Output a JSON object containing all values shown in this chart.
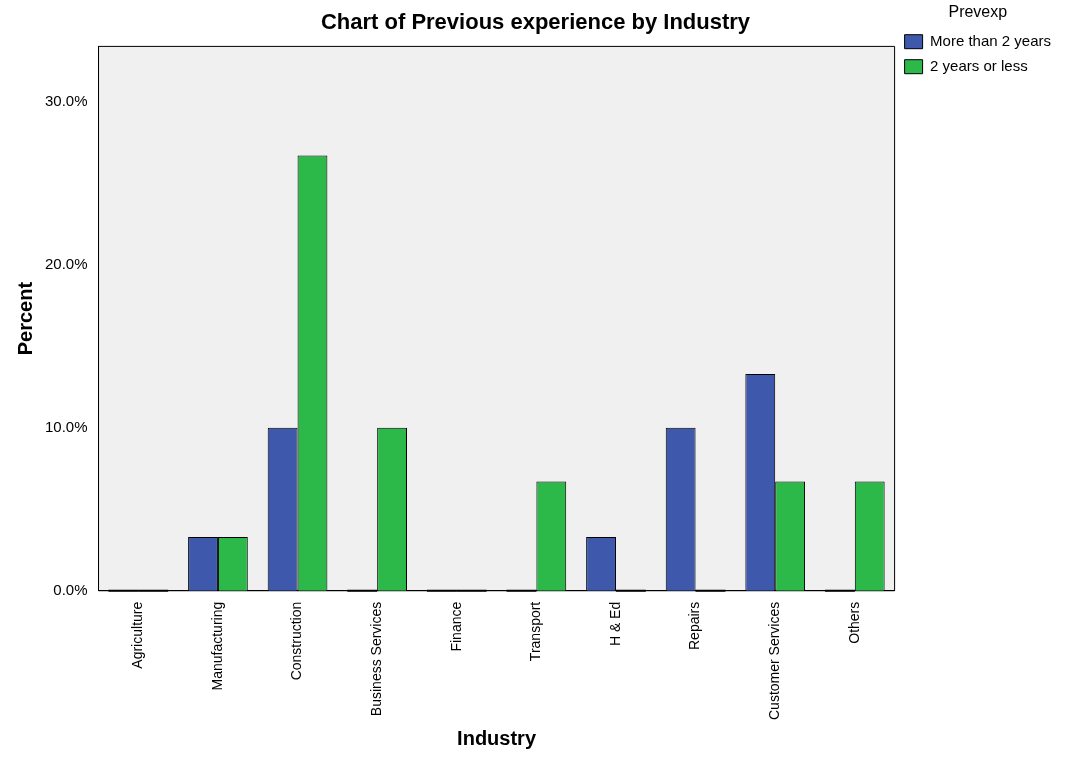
{
  "chart_data": {
    "type": "bar",
    "title": "Chart of Previous experience by Industry",
    "xlabel": "Industry",
    "ylabel": "Percent",
    "legend_title": "Prevexp",
    "categories": [
      "Agriculture",
      "Manufacturing",
      "Construction",
      "Business Services",
      "Finance",
      "Transport",
      "H & Ed",
      "Repairs",
      "Customer Services",
      "Others"
    ],
    "series": [
      {
        "name": "More than 2 years",
        "color": "#3e58ac",
        "values": [
          0,
          3.3,
          10,
          0,
          0,
          0,
          3.3,
          10,
          13.3,
          0
        ]
      },
      {
        "name": "2 years or less",
        "color": "#2db84a",
        "values": [
          0,
          3.3,
          26.7,
          10,
          0,
          6.7,
          0,
          0,
          6.7,
          6.7
        ]
      }
    ],
    "ylim": [
      0,
      33.4
    ],
    "yticks": [
      {
        "value": 0,
        "label": "0.0%"
      },
      {
        "value": 10,
        "label": "10.0%"
      },
      {
        "value": 20,
        "label": "20.0%"
      },
      {
        "value": 30,
        "label": "30.0%"
      }
    ],
    "grid": false,
    "legend": "top right"
  }
}
